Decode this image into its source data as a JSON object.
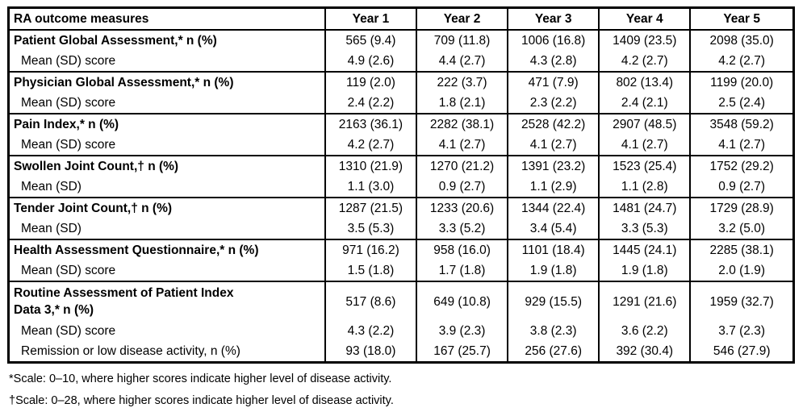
{
  "table": {
    "header": [
      "RA outcome measures",
      "Year 1",
      "Year 2",
      "Year 3",
      "Year 4",
      "Year 5"
    ],
    "rows": [
      {
        "label": "Patient Global Assessment,* n (%)",
        "values": [
          "565 (9.4)",
          "709 (11.8)",
          "1006 (16.8)",
          "1409 (23.5)",
          "2098 (35.0)"
        ]
      },
      {
        "label": "Mean (SD) score",
        "values": [
          "4.9 (2.6)",
          "4.4 (2.7)",
          "4.3 (2.8)",
          "4.2 (2.7)",
          "4.2 (2.7)"
        ]
      },
      {
        "label": "Physician Global Assessment,* n (%)",
        "values": [
          "119 (2.0)",
          "222 (3.7)",
          "471 (7.9)",
          "802 (13.4)",
          "1199 (20.0)"
        ]
      },
      {
        "label": "Mean (SD) score",
        "values": [
          "2.4 (2.2)",
          "1.8 (2.1)",
          "2.3 (2.2)",
          "2.4 (2.1)",
          "2.5 (2.4)"
        ]
      },
      {
        "label": "Pain Index,* n (%)",
        "values": [
          "2163 (36.1)",
          "2282 (38.1)",
          "2528 (42.2)",
          "2907 (48.5)",
          "3548 (59.2)"
        ]
      },
      {
        "label": "Mean (SD) score",
        "values": [
          "4.2 (2.7)",
          "4.1 (2.7)",
          "4.1 (2.7)",
          "4.1 (2.7)",
          "4.1 (2.7)"
        ]
      },
      {
        "label": "Swollen Joint Count,† n (%)",
        "values": [
          "1310 (21.9)",
          "1270 (21.2)",
          "1391 (23.2)",
          "1523 (25.4)",
          "1752 (29.2)"
        ]
      },
      {
        "label": "Mean (SD)",
        "values": [
          "1.1 (3.0)",
          "0.9 (2.7)",
          "1.1 (2.9)",
          "1.1 (2.8)",
          "0.9 (2.7)"
        ]
      },
      {
        "label": "Tender Joint Count,† n (%)",
        "values": [
          "1287 (21.5)",
          "1233 (20.6)",
          "1344 (22.4)",
          "1481 (24.7)",
          "1729 (28.9)"
        ]
      },
      {
        "label": "Mean (SD)",
        "values": [
          "3.5 (5.3)",
          "3.3 (5.2)",
          "3.4 (5.4)",
          "3.3 (5.3)",
          "3.2 (5.0)"
        ]
      },
      {
        "label": "Health Assessment Questionnaire,* n (%)",
        "values": [
          "971 (16.2)",
          "958 (16.0)",
          "1101 (18.4)",
          "1445 (24.1)",
          "2285 (38.1)"
        ]
      },
      {
        "label": "Mean (SD) score",
        "values": [
          "1.5 (1.8)",
          "1.7 (1.8)",
          "1.9 (1.8)",
          "1.9 (1.8)",
          "2.0 (1.9)"
        ]
      },
      {
        "label": "Routine Assessment of Patient Index Data 3,* n (%)",
        "values": [
          "517 (8.6)",
          "649 (10.8)",
          "929 (15.5)",
          "1291 (21.6)",
          "1959 (32.7)"
        ]
      },
      {
        "label": "Mean (SD) score",
        "values": [
          "4.3 (2.2)",
          "3.9 (2.3)",
          "3.8 (2.3)",
          "3.6 (2.2)",
          "3.7 (2.3)"
        ]
      },
      {
        "label": "Remission or low disease activity, n (%)",
        "values": [
          "93 (18.0)",
          "167 (25.7)",
          "256 (27.6)",
          "392 (30.4)",
          "546 (27.9)"
        ]
      }
    ]
  },
  "footnotes": {
    "asterisk": "*Scale: 0–10, where higher scores indicate higher level of disease activity.",
    "dagger": "†Scale: 0–28, where higher scores indicate higher level of disease activity."
  }
}
